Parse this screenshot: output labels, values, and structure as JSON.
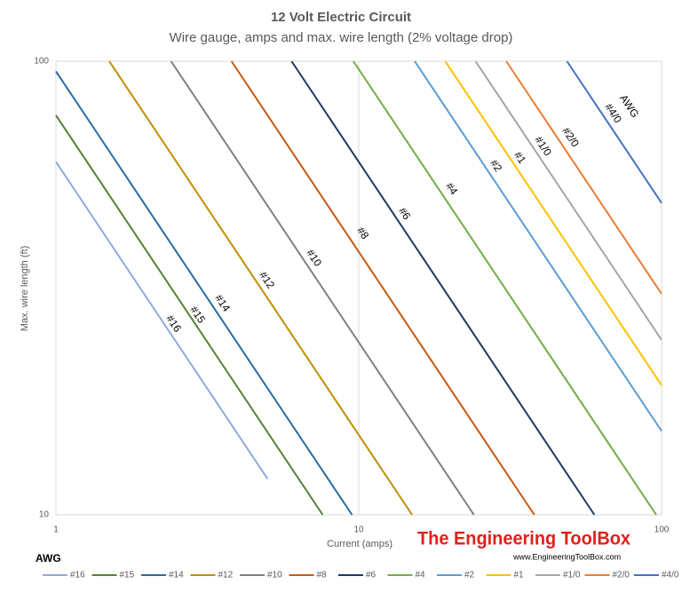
{
  "chart_data": {
    "type": "line",
    "title": "12 Volt Electric Circuit",
    "subtitle": "Wire gauge, amps and max. wire length (2% voltage drop)",
    "x_label": "Current (amps)",
    "y_label": "Max. wire length (ft)",
    "legend_title": "AWG",
    "legend_position": "bottom",
    "xscale": "log",
    "yscale": "log",
    "xlim": [
      1,
      100
    ],
    "ylim": [
      10,
      100
    ],
    "xticks": [
      1,
      10,
      100
    ],
    "yticks": [
      10,
      100
    ],
    "grid": true,
    "watermark": "The Engineering ToolBox",
    "watermark_url": "www.EngineeringToolBox.com",
    "series": [
      {
        "name": "#16",
        "color": "#8faadc",
        "x": [
          1,
          5
        ],
        "values": [
          60,
          12
        ]
      },
      {
        "name": "#15",
        "color": "#548235",
        "x": [
          1,
          7.6
        ],
        "values": [
          76,
          10
        ]
      },
      {
        "name": "#14",
        "color": "#2e6a9e",
        "x": [
          1,
          9.5
        ],
        "values": [
          95,
          10
        ]
      },
      {
        "name": "#12",
        "color": "#bf9000",
        "x": [
          1.5,
          15
        ],
        "values": [
          100,
          10
        ]
      },
      {
        "name": "#10",
        "color": "#7f7f7f",
        "x": [
          2.4,
          24
        ],
        "values": [
          100,
          10
        ]
      },
      {
        "name": "#8",
        "color": "#c55a11",
        "x": [
          3.8,
          38
        ],
        "values": [
          100,
          10
        ]
      },
      {
        "name": "#6",
        "color": "#203864",
        "x": [
          6,
          60
        ],
        "values": [
          100,
          10
        ]
      },
      {
        "name": "#4",
        "color": "#70ad47",
        "x": [
          9.6,
          96
        ],
        "values": [
          100,
          10
        ]
      },
      {
        "name": "#2",
        "color": "#5b9bd5",
        "x": [
          15.3,
          100
        ],
        "values": [
          100,
          15.3
        ]
      },
      {
        "name": "#1",
        "color": "#ffc000",
        "x": [
          19.3,
          100
        ],
        "values": [
          100,
          19.3
        ]
      },
      {
        "name": "#1/0",
        "color": "#a5a5a5",
        "x": [
          24.3,
          100
        ],
        "values": [
          100,
          24.3
        ]
      },
      {
        "name": "#2/0",
        "color": "#ed7d31",
        "x": [
          30.7,
          100
        ],
        "values": [
          100,
          30.7
        ]
      },
      {
        "name": "#4/0",
        "color": "#4472c4",
        "x": [
          48.7,
          100
        ],
        "values": [
          100,
          48.7
        ]
      }
    ]
  }
}
